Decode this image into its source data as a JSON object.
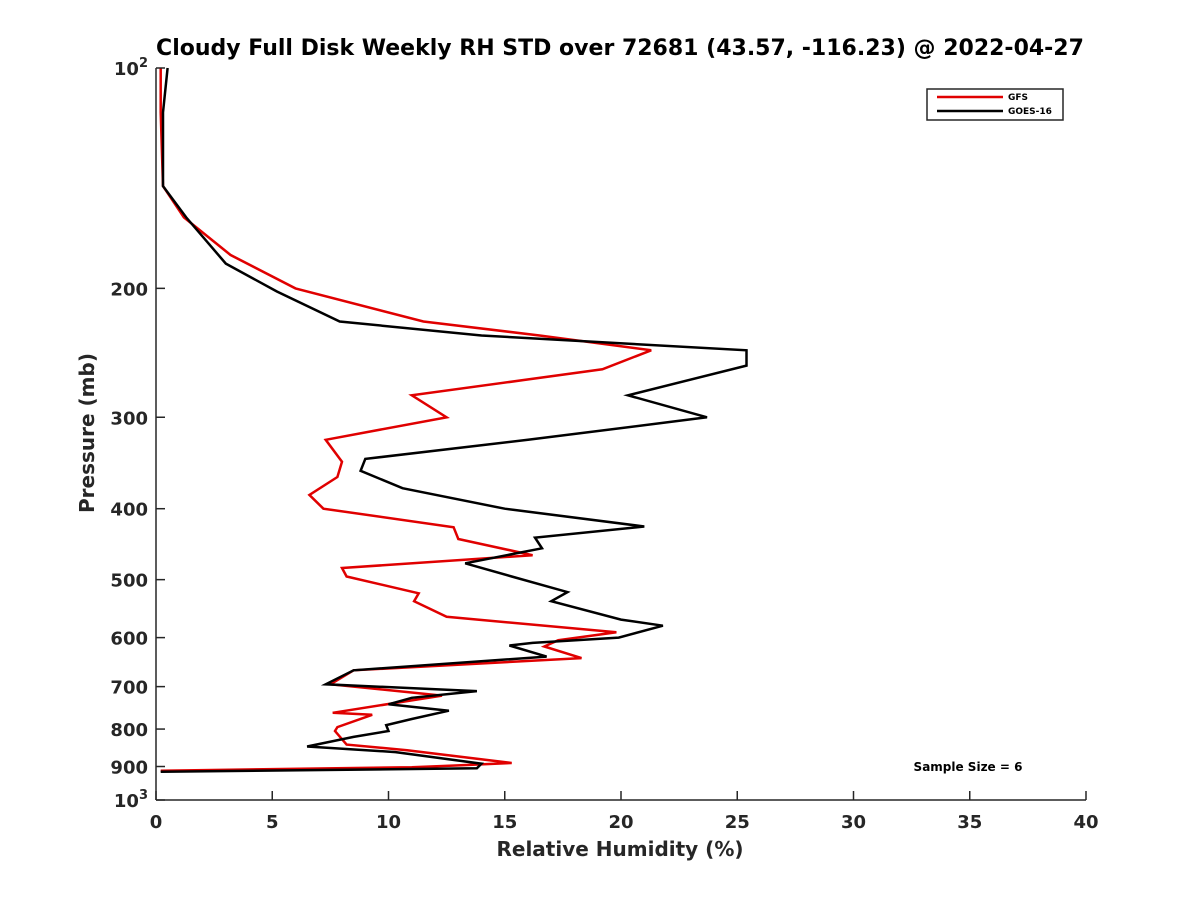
{
  "chart_data": {
    "type": "line",
    "title": "Cloudy Full Disk Weekly RH STD over 72681 (43.57, -116.23) @ 2022-04-27",
    "xlabel": "Relative Humidity (%)",
    "ylabel": "Pressure (mb)",
    "xlim": [
      0,
      40
    ],
    "ylim": [
      100,
      1000
    ],
    "y_scale": "log",
    "y_reversed": true,
    "grid": false,
    "legend_position": "top-right",
    "x_ticks": [
      "0",
      "5",
      "10",
      "15",
      "20",
      "25",
      "30",
      "35",
      "40"
    ],
    "y_ticks": [
      {
        "value": 100,
        "base": "10",
        "exp": "2"
      },
      {
        "value": 200,
        "label": "200"
      },
      {
        "value": 300,
        "label": "300"
      },
      {
        "value": 400,
        "label": "400"
      },
      {
        "value": 500,
        "label": "500"
      },
      {
        "value": 600,
        "label": "600"
      },
      {
        "value": 700,
        "label": "700"
      },
      {
        "value": 800,
        "label": "800"
      },
      {
        "value": 900,
        "label": "900"
      },
      {
        "value": 1000,
        "base": "10",
        "exp": "3"
      }
    ],
    "series": [
      {
        "name": "GFS",
        "color": "#e00000",
        "points": [
          [
            0.2,
            100
          ],
          [
            0.2,
            115
          ],
          [
            0.3,
            145
          ],
          [
            1.2,
            160
          ],
          [
            3.2,
            180
          ],
          [
            6.0,
            200
          ],
          [
            11.5,
            222
          ],
          [
            16.5,
            232
          ],
          [
            21.3,
            243
          ],
          [
            19.2,
            258
          ],
          [
            11.0,
            280
          ],
          [
            12.5,
            300
          ],
          [
            7.3,
            322
          ],
          [
            8.0,
            345
          ],
          [
            7.8,
            362
          ],
          [
            6.6,
            383
          ],
          [
            7.2,
            400
          ],
          [
            12.8,
            424
          ],
          [
            13.0,
            440
          ],
          [
            16.2,
            463
          ],
          [
            8.0,
            482
          ],
          [
            8.2,
            495
          ],
          [
            11.3,
            522
          ],
          [
            11.1,
            535
          ],
          [
            12.5,
            562
          ],
          [
            19.8,
            590
          ],
          [
            17.3,
            605
          ],
          [
            16.7,
            617
          ],
          [
            18.3,
            640
          ],
          [
            8.5,
            665
          ],
          [
            7.5,
            695
          ],
          [
            12.3,
            720
          ],
          [
            7.6,
            760
          ],
          [
            9.3,
            765
          ],
          [
            7.8,
            795
          ],
          [
            7.7,
            805
          ],
          [
            8.2,
            840
          ],
          [
            10.8,
            855
          ],
          [
            15.3,
            890
          ],
          [
            13.0,
            897
          ],
          [
            11.0,
            902
          ],
          [
            0.2,
            912
          ]
        ]
      },
      {
        "name": "GOES-16",
        "color": "#000000",
        "points": [
          [
            0.5,
            100
          ],
          [
            0.3,
            115
          ],
          [
            0.3,
            145
          ],
          [
            1.3,
            160
          ],
          [
            3.0,
            185
          ],
          [
            5.2,
            202
          ],
          [
            7.9,
            222
          ],
          [
            14.0,
            232
          ],
          [
            25.4,
            243
          ],
          [
            25.4,
            255
          ],
          [
            20.3,
            280
          ],
          [
            23.7,
            300
          ],
          [
            16.0,
            322
          ],
          [
            9.0,
            342
          ],
          [
            8.8,
            355
          ],
          [
            10.6,
            375
          ],
          [
            15.0,
            400
          ],
          [
            21.0,
            423
          ],
          [
            16.3,
            438
          ],
          [
            16.6,
            453
          ],
          [
            13.3,
            475
          ],
          [
            15.3,
            495
          ],
          [
            17.7,
            520
          ],
          [
            17.0,
            535
          ],
          [
            20.0,
            567
          ],
          [
            21.8,
            578
          ],
          [
            19.9,
            600
          ],
          [
            16.2,
            610
          ],
          [
            15.2,
            615
          ],
          [
            16.8,
            637
          ],
          [
            8.5,
            665
          ],
          [
            7.3,
            695
          ],
          [
            13.8,
            710
          ],
          [
            11.0,
            725
          ],
          [
            10.0,
            740
          ],
          [
            12.6,
            755
          ],
          [
            11.0,
            775
          ],
          [
            9.9,
            790
          ],
          [
            10.0,
            805
          ],
          [
            8.5,
            820
          ],
          [
            6.5,
            845
          ],
          [
            10.3,
            860
          ],
          [
            14.0,
            892
          ],
          [
            13.8,
            905
          ],
          [
            0.2,
            915
          ]
        ]
      }
    ],
    "annotation": "Sample Size = 6"
  }
}
